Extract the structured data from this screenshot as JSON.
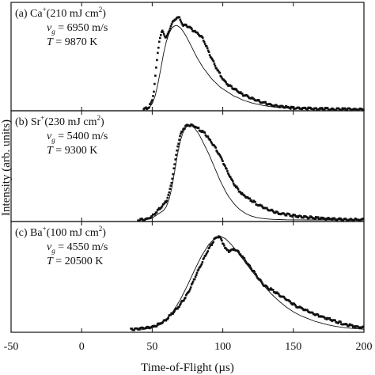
{
  "chart_data": [
    {
      "type": "scatter",
      "panel_label": "(a) Ca",
      "ion_charge": "+",
      "fluence_open": "(210 mJ cm",
      "fluence_exp": "2",
      "fluence_close": ")",
      "v_sym": "v",
      "v_sub": "g",
      "v_value": " = 6950 m/s",
      "t_sym": "T",
      "t_value": " = 9870 K",
      "experiment_peak_x": 68.5,
      "fit_peak_x": 67,
      "series": [
        {
          "kind": "experiment",
          "x": [
            44,
            46,
            48,
            50,
            51,
            52,
            53,
            54,
            55,
            56,
            57,
            58,
            59,
            60,
            61,
            62,
            63,
            64,
            65,
            66,
            67,
            68,
            69,
            70,
            71,
            72,
            73,
            74,
            75,
            76,
            77,
            78,
            79,
            80,
            81,
            82,
            83,
            84,
            85,
            86,
            87,
            88,
            90,
            92,
            94,
            96,
            98,
            100,
            102,
            104,
            106,
            108,
            110,
            112,
            114,
            116,
            118,
            120,
            122,
            124,
            126,
            128,
            130,
            132,
            134,
            136,
            138,
            140,
            144,
            148,
            152,
            156,
            160,
            165,
            170,
            175,
            180,
            185,
            190,
            195,
            200
          ],
          "y": [
            0.003,
            0.01,
            0.03,
            0.09,
            0.18,
            0.32,
            0.47,
            0.62,
            0.73,
            0.81,
            0.84,
            0.82,
            0.79,
            0.78,
            0.8,
            0.84,
            0.89,
            0.93,
            0.95,
            0.96,
            0.985,
            1.0,
            0.99,
            0.96,
            0.93,
            0.91,
            0.91,
            0.91,
            0.9,
            0.89,
            0.875,
            0.86,
            0.85,
            0.84,
            0.83,
            0.82,
            0.81,
            0.8,
            0.78,
            0.76,
            0.73,
            0.69,
            0.62,
            0.55,
            0.49,
            0.43,
            0.38,
            0.33,
            0.29,
            0.26,
            0.24,
            0.22,
            0.2,
            0.18,
            0.16,
            0.15,
            0.13,
            0.12,
            0.11,
            0.095,
            0.085,
            0.075,
            0.065,
            0.055,
            0.048,
            0.04,
            0.035,
            0.03,
            0.022,
            0.016,
            0.012,
            0.008,
            0.006,
            0.004,
            0.003,
            0.002,
            0.001,
            0.001,
            0,
            0,
            0
          ]
        },
        {
          "kind": "fit",
          "x": [
            45,
            48,
            50,
            52,
            54,
            56,
            58,
            60,
            62,
            64,
            66,
            67,
            68,
            70,
            72,
            74,
            76,
            78,
            80,
            82,
            84,
            86,
            88,
            90,
            92,
            94,
            96,
            98,
            100,
            102,
            104,
            106,
            108,
            110,
            112,
            114,
            116,
            118,
            120,
            124,
            128,
            132,
            136,
            140,
            145,
            150,
            160,
            170,
            180,
            190,
            200
          ],
          "y": [
            0,
            0.02,
            0.06,
            0.14,
            0.27,
            0.43,
            0.6,
            0.73,
            0.82,
            0.88,
            0.9,
            0.905,
            0.9,
            0.88,
            0.84,
            0.79,
            0.73,
            0.67,
            0.61,
            0.55,
            0.5,
            0.45,
            0.41,
            0.37,
            0.33,
            0.3,
            0.27,
            0.24,
            0.22,
            0.2,
            0.18,
            0.16,
            0.14,
            0.13,
            0.115,
            0.1,
            0.09,
            0.08,
            0.07,
            0.055,
            0.042,
            0.032,
            0.024,
            0.018,
            0.012,
            0.008,
            0.004,
            0.002,
            0.001,
            0,
            0
          ]
        }
      ]
    },
    {
      "type": "scatter",
      "panel_label": "(b) Sr",
      "ion_charge": "+",
      "fluence_open": "(230 mJ cm",
      "fluence_exp": "2",
      "fluence_close": ")",
      "v_sym": "v",
      "v_sub": "g",
      "v_value": " = 5400 m/s",
      "t_sym": "T",
      "t_value": " = 9300 K",
      "experiment_peak_x": 78,
      "fit_peak_x": 77,
      "series": [
        {
          "kind": "experiment",
          "x": [
            40,
            44,
            46,
            48,
            50,
            52,
            54,
            56,
            58,
            60,
            62,
            64,
            66,
            68,
            70,
            72,
            74,
            76,
            78,
            80,
            82,
            84,
            86,
            88,
            90,
            92,
            94,
            96,
            98,
            100,
            102,
            104,
            106,
            108,
            110,
            112,
            114,
            116,
            118,
            120,
            122,
            124,
            126,
            128,
            130,
            132,
            134,
            136,
            138,
            140,
            142,
            144,
            146,
            148,
            150,
            155,
            160,
            165,
            170,
            175,
            180,
            185,
            190,
            195,
            200
          ],
          "y": [
            0,
            0.005,
            0.01,
            0.02,
            0.04,
            0.07,
            0.1,
            0.13,
            0.16,
            0.2,
            0.28,
            0.42,
            0.6,
            0.78,
            0.9,
            0.96,
            0.99,
            1.0,
            1.0,
            0.99,
            0.97,
            0.95,
            0.93,
            0.9,
            0.86,
            0.82,
            0.78,
            0.73,
            0.68,
            0.62,
            0.55,
            0.49,
            0.43,
            0.38,
            0.34,
            0.3,
            0.27,
            0.25,
            0.23,
            0.21,
            0.19,
            0.17,
            0.15,
            0.14,
            0.12,
            0.11,
            0.1,
            0.09,
            0.08,
            0.07,
            0.065,
            0.06,
            0.055,
            0.05,
            0.045,
            0.035,
            0.028,
            0.022,
            0.016,
            0.012,
            0.008,
            0.005,
            0.003,
            0.002,
            0.001
          ]
        },
        {
          "kind": "fit",
          "x": [
            44,
            48,
            50,
            52,
            54,
            56,
            58,
            60,
            62,
            64,
            66,
            68,
            70,
            72,
            74,
            76,
            77,
            78,
            80,
            82,
            84,
            86,
            88,
            90,
            92,
            94,
            96,
            98,
            100,
            102,
            104,
            106,
            108,
            110,
            112,
            114,
            116,
            118,
            120,
            124,
            128,
            132,
            136,
            140,
            145,
            150,
            160,
            170,
            180,
            190,
            200
          ],
          "y": [
            0,
            0.01,
            0.02,
            0.04,
            0.06,
            0.08,
            0.1,
            0.14,
            0.22,
            0.35,
            0.52,
            0.7,
            0.84,
            0.93,
            0.98,
            1.0,
            1.0,
            0.995,
            0.97,
            0.93,
            0.88,
            0.82,
            0.76,
            0.7,
            0.63,
            0.56,
            0.49,
            0.42,
            0.36,
            0.3,
            0.25,
            0.21,
            0.17,
            0.14,
            0.11,
            0.09,
            0.07,
            0.055,
            0.043,
            0.026,
            0.016,
            0.01,
            0.006,
            0.004,
            0.002,
            0.001,
            0,
            0,
            0,
            0,
            0
          ]
        }
      ]
    },
    {
      "type": "scatter",
      "panel_label": "(c) Ba",
      "ion_charge": "+",
      "fluence_open": "(100 mJ cm",
      "fluence_exp": "2",
      "fluence_close": ")",
      "v_sym": "v",
      "v_sub": "g",
      "v_value": " = 4550 m/s",
      "t_sym": "T",
      "t_value": " = 20500 K",
      "experiment_peak_x": 97,
      "fit_peak_x": 98,
      "series": [
        {
          "kind": "experiment",
          "x": [
            35,
            40,
            45,
            50,
            55,
            60,
            64,
            68,
            72,
            76,
            80,
            84,
            88,
            90,
            92,
            94,
            96,
            97,
            98,
            100,
            102,
            104,
            106,
            108,
            110,
            112,
            114,
            116,
            118,
            120,
            122,
            124,
            126,
            128,
            130,
            132,
            134,
            136,
            138,
            140,
            142,
            144,
            146,
            148,
            150,
            152,
            154,
            156,
            158,
            160,
            162,
            164,
            166,
            168,
            170,
            172,
            174,
            176,
            178,
            180,
            182,
            184,
            186,
            188,
            190,
            192,
            194,
            196,
            198,
            200
          ],
          "y": [
            0.015,
            0.02,
            0.03,
            0.04,
            0.07,
            0.12,
            0.18,
            0.24,
            0.32,
            0.42,
            0.55,
            0.68,
            0.8,
            0.86,
            0.91,
            0.96,
            0.99,
            1.0,
            0.99,
            0.93,
            0.87,
            0.84,
            0.85,
            0.86,
            0.85,
            0.82,
            0.78,
            0.74,
            0.7,
            0.66,
            0.62,
            0.58,
            0.54,
            0.5,
            0.47,
            0.45,
            0.44,
            0.42,
            0.4,
            0.38,
            0.36,
            0.34,
            0.32,
            0.3,
            0.28,
            0.26,
            0.25,
            0.24,
            0.22,
            0.21,
            0.19,
            0.18,
            0.17,
            0.16,
            0.15,
            0.14,
            0.13,
            0.12,
            0.11,
            0.1,
            0.09,
            0.08,
            0.07,
            0.06,
            0.06,
            0.05,
            0.045,
            0.04,
            0.035,
            0.03
          ]
        },
        {
          "kind": "fit",
          "x": [
            40,
            50,
            55,
            60,
            65,
            70,
            75,
            80,
            85,
            90,
            94,
            98,
            102,
            106,
            110,
            115,
            120,
            125,
            130,
            135,
            140,
            145,
            150,
            155,
            160,
            165,
            170,
            175,
            180,
            185,
            190,
            195,
            200
          ],
          "y": [
            0.005,
            0.03,
            0.06,
            0.12,
            0.21,
            0.33,
            0.48,
            0.64,
            0.79,
            0.91,
            0.97,
            1.0,
            0.97,
            0.91,
            0.84,
            0.74,
            0.64,
            0.55,
            0.46,
            0.38,
            0.31,
            0.25,
            0.2,
            0.16,
            0.13,
            0.1,
            0.08,
            0.06,
            0.045,
            0.035,
            0.027,
            0.02,
            0.015
          ]
        }
      ]
    }
  ],
  "axes": {
    "xlabel": "Time-of-Flight (µs)",
    "ylabel": "Intensity (arb. units)",
    "xlim": [
      -50,
      200
    ],
    "ylim": [
      0,
      1.12
    ],
    "xticks": [
      -50,
      0,
      50,
      100,
      150,
      200
    ],
    "xtick_labels": [
      "-50",
      "0",
      "50",
      "100",
      "150",
      "200"
    ],
    "grid": false,
    "marker_color": "#111111",
    "line_color": "#111111"
  }
}
